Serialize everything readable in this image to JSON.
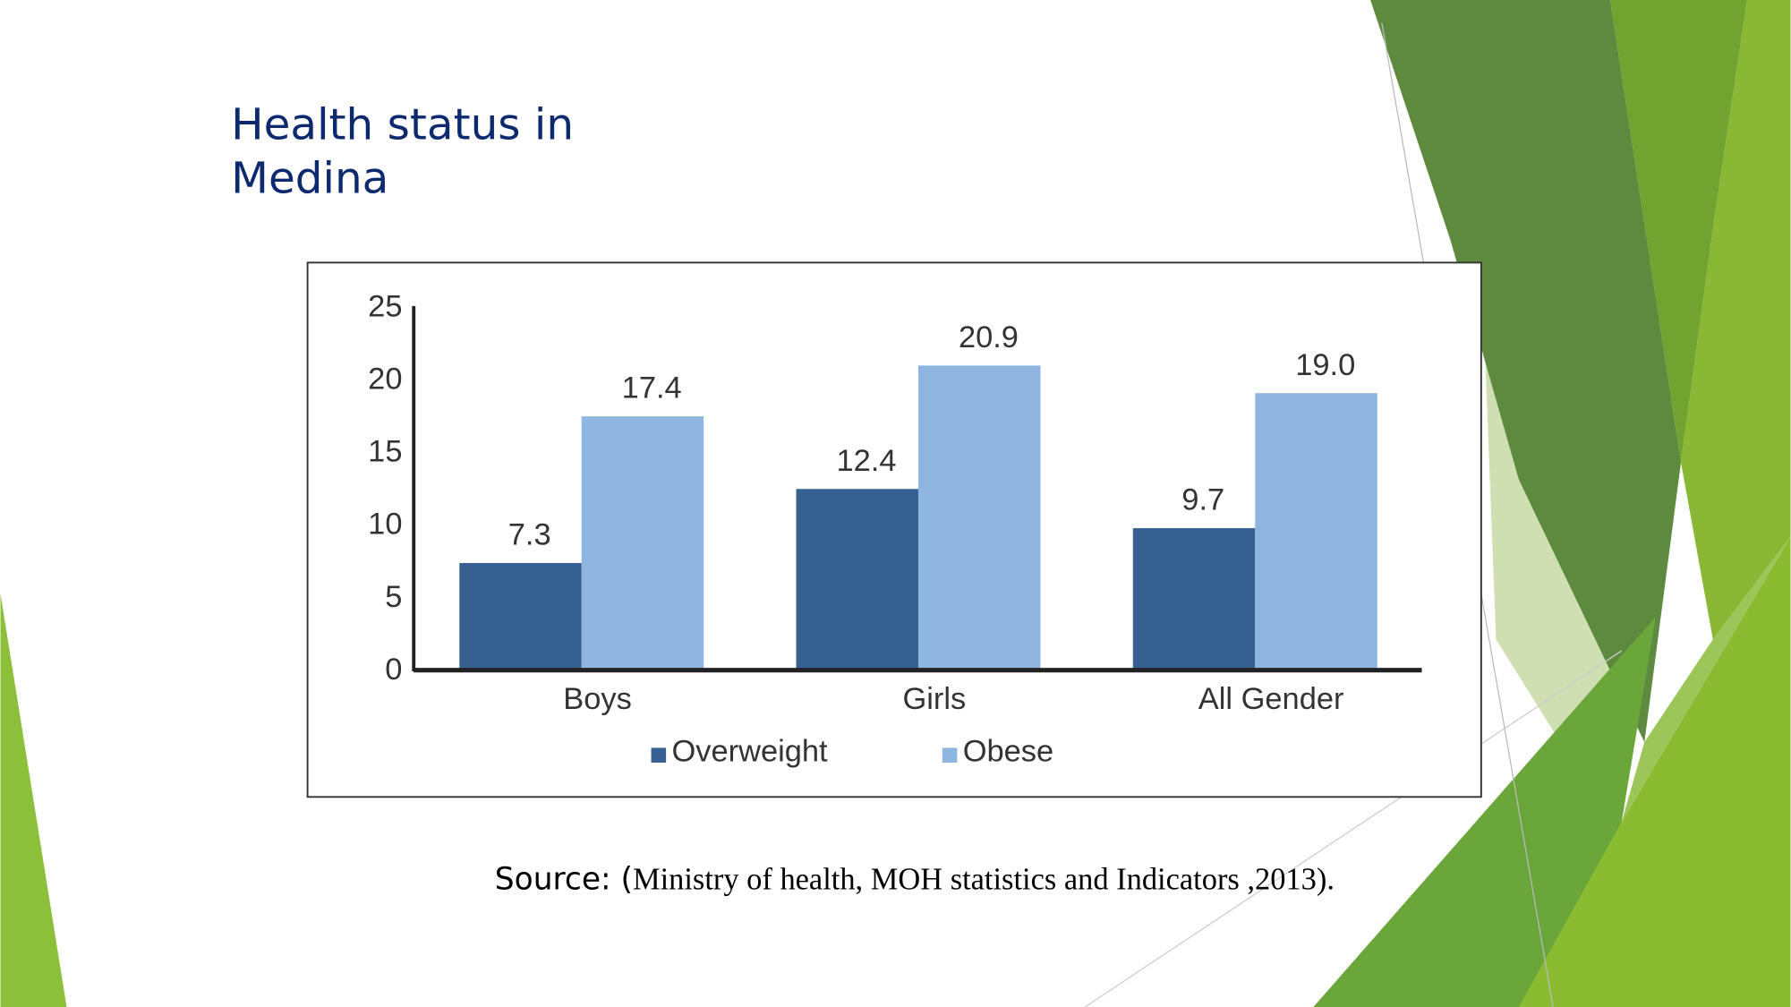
{
  "slide": {
    "title_lines": [
      "Health status in",
      "Medina"
    ],
    "source_prefix": "Source: (",
    "source": "Ministry of health, MOH statistics and Indicators ,2013)."
  },
  "chart_data": {
    "type": "bar",
    "categories": [
      "Boys",
      "Girls",
      "All Gender"
    ],
    "series": [
      {
        "name": "Overweight",
        "color": "#366092",
        "values": [
          7.3,
          12.4,
          9.7
        ],
        "value_labels": [
          "7.3",
          "12.4",
          "9.7"
        ]
      },
      {
        "name": "Obese",
        "color": "#8eb4e0",
        "values": [
          17.4,
          20.9,
          19.0
        ],
        "value_labels": [
          "17.4",
          "20.9",
          "19.0"
        ]
      }
    ],
    "ylim": [
      0,
      25
    ],
    "yticks": [
      0,
      5,
      10,
      15,
      20,
      25
    ],
    "grid": false,
    "legend": "bottom"
  }
}
